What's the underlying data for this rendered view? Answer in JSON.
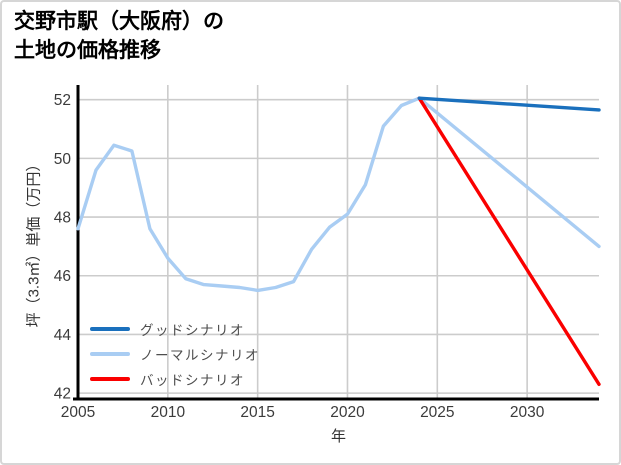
{
  "window": {
    "background": "#ffffff",
    "border_color": "#d6d6d6"
  },
  "header": {
    "title_line1": "交野市駅（大阪府）の",
    "title_line2": "土地の価格推移"
  },
  "chart_data": {
    "type": "line",
    "title": "交野市駅（大阪府）の土地の価格推移",
    "xlabel": "年",
    "ylabel": "坪（3.3㎡）単価（万円）",
    "xlim": [
      2005,
      2034
    ],
    "ylim": [
      41.8,
      52.5
    ],
    "xticks": [
      2005,
      2010,
      2015,
      2020,
      2025,
      2030
    ],
    "yticks": [
      42,
      44,
      46,
      48,
      50,
      52
    ],
    "grid": true,
    "grid_color": "#cccccc",
    "axis_color": "#000000",
    "tick_label_color": "#3b3b3b",
    "legend_position": "lower left",
    "series": [
      {
        "name": "グッドシナリオ",
        "color": "#1a70bd",
        "x": [
          2024,
          2034
        ],
        "y": [
          52.05,
          51.65
        ]
      },
      {
        "name": "ノーマルシナリオ",
        "color": "#a9cdf3",
        "x": [
          2005,
          2006,
          2007,
          2008,
          2009,
          2010,
          2011,
          2012,
          2013,
          2014,
          2015,
          2016,
          2017,
          2018,
          2019,
          2020,
          2021,
          2022,
          2023,
          2024,
          2034
        ],
        "y": [
          47.6,
          49.6,
          50.45,
          50.25,
          47.6,
          46.6,
          45.9,
          45.7,
          45.65,
          45.6,
          45.5,
          45.6,
          45.8,
          46.9,
          47.65,
          48.1,
          49.1,
          51.1,
          51.8,
          52.05,
          47.0
        ]
      },
      {
        "name": "バッドシナリオ",
        "color": "#fa0000",
        "x": [
          2024,
          2034
        ],
        "y": [
          52.05,
          42.3
        ]
      }
    ]
  }
}
